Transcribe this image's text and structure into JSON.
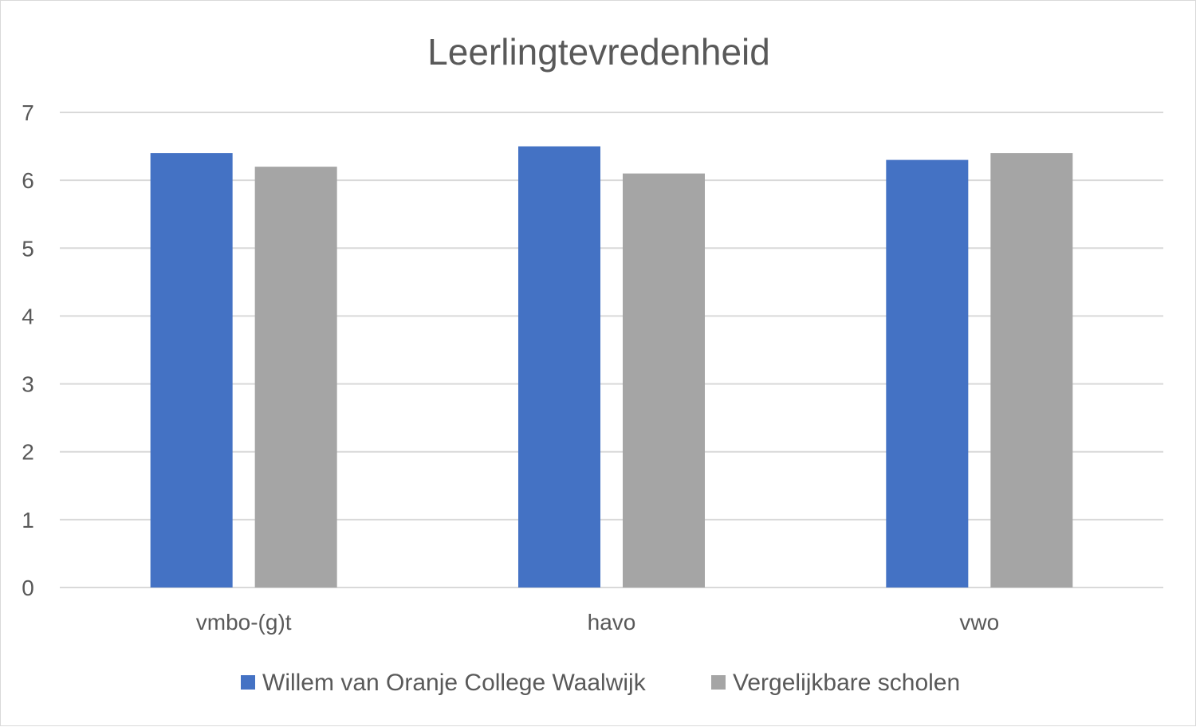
{
  "chart_data": {
    "type": "bar",
    "title": "Leerlingtevredenheid",
    "categories": [
      "vmbo-(g)t",
      "havo",
      "vwo"
    ],
    "series": [
      {
        "name": "Willem van Oranje College Waalwijk",
        "color": "#4472C4",
        "values": [
          6.4,
          6.5,
          6.3
        ]
      },
      {
        "name": "Vergelijkbare scholen",
        "color": "#A5A5A5",
        "values": [
          6.2,
          6.1,
          6.4
        ]
      }
    ],
    "ylim": [
      0,
      7
    ],
    "yticks": [
      "0",
      "1",
      "2",
      "3",
      "4",
      "5",
      "6",
      "7"
    ],
    "xlabel": "",
    "ylabel": "",
    "grid": true,
    "legend_position": "bottom"
  }
}
